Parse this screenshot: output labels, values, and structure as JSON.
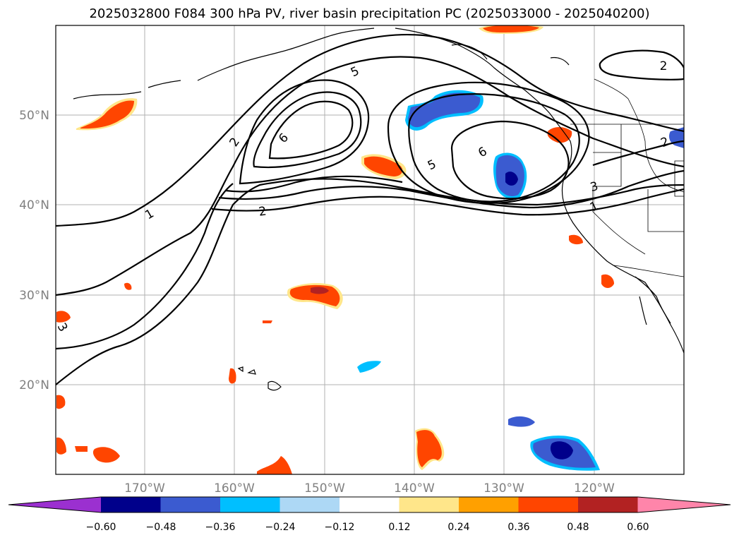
{
  "title": "2025032800 F084 300 hPa PV, river basin precipitation PC (2025033000 - 2025040200)",
  "lat_labels": [
    "50°N",
    "40°N",
    "30°N",
    "20°N"
  ],
  "lon_labels": [
    "170°W",
    "160°W",
    "150°W",
    "140°W",
    "130°W",
    "120°W"
  ],
  "contour_labels": [
    "1",
    "2",
    "2",
    "5",
    "6",
    "5",
    "6",
    "2",
    "2",
    "3",
    "1",
    "3"
  ],
  "colorbar": {
    "ticks": [
      "−0.60",
      "−0.48",
      "−0.36",
      "−0.24",
      "−0.12",
      "0.12",
      "0.24",
      "0.36",
      "0.48",
      "0.60"
    ],
    "colors": [
      "#9b30d0",
      "#00008b",
      "#3b5bd0",
      "#00bfff",
      "#add8f5",
      "#ffffff",
      "#ffe68a",
      "#ffa000",
      "#ff4500",
      "#b22222",
      "#ff85aa"
    ]
  },
  "colors": {
    "gridline": "#b0b0b0",
    "coast": "#000000",
    "contour": "#000000"
  }
}
